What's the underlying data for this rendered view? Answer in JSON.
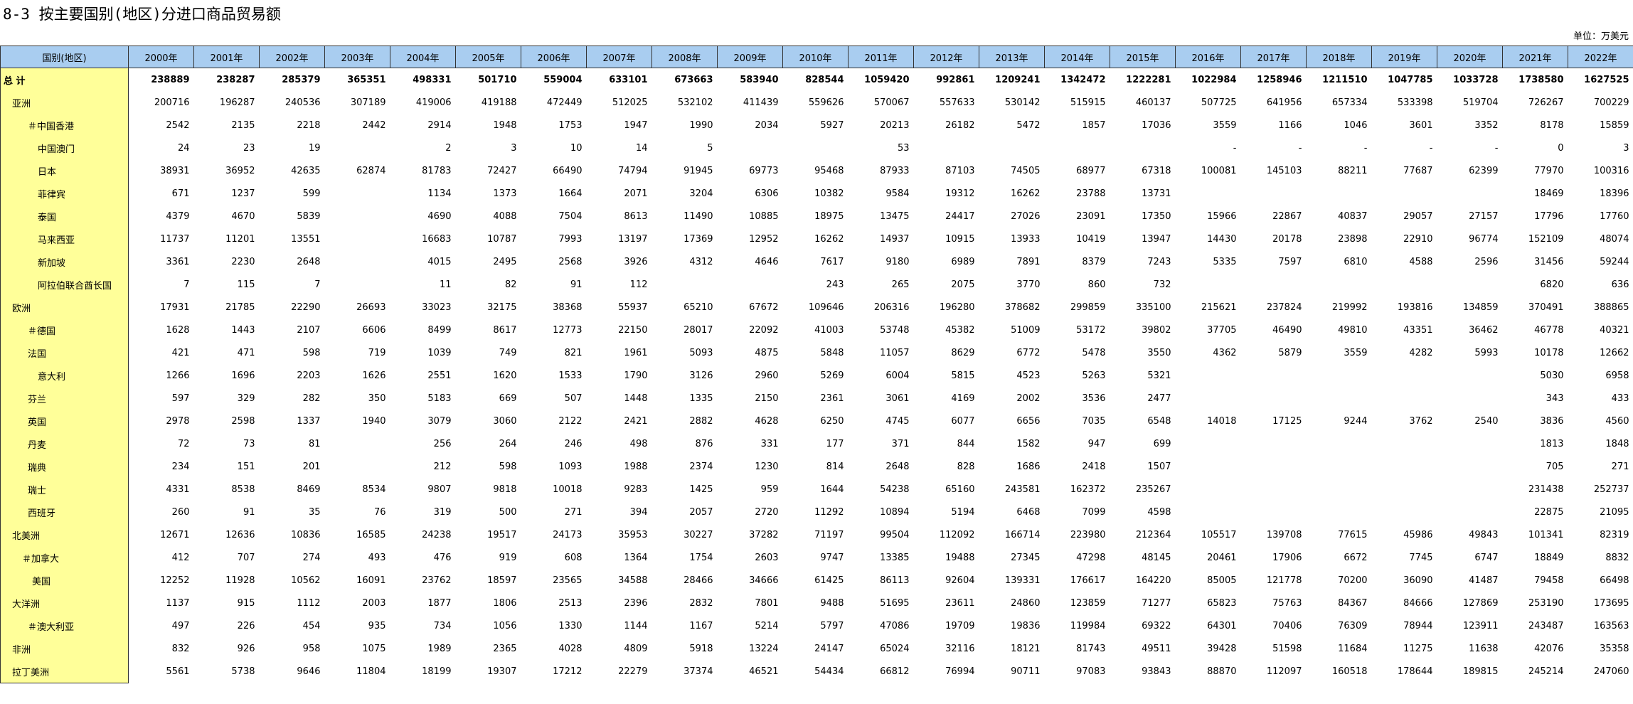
{
  "title": "8-3 按主要国别(地区)分进口商品贸易额",
  "unit": "单位：万美元",
  "table": {
    "header": [
      "国别(地区)",
      "2000年",
      "2001年",
      "2002年",
      "2003年",
      "2004年",
      "2005年",
      "2006年",
      "2007年",
      "2008年",
      "2009年",
      "2010年",
      "2011年",
      "2012年",
      "2013年",
      "2014年",
      "2015年",
      "2016年",
      "2017年",
      "2018年",
      "2019年",
      "2020年",
      "2021年",
      "2022年"
    ],
    "rows": [
      [
        "总  计",
        238889,
        238287,
        285379,
        365351,
        498331,
        501710,
        559004,
        633101,
        673663,
        583940,
        828544,
        1059420,
        992861,
        1209241,
        1342472,
        1222281,
        1022984,
        1258946,
        1211510,
        1047785,
        1033728,
        1738580,
        1627525
      ],
      [
        "亚洲",
        200716,
        196287,
        240536,
        307189,
        419006,
        419188,
        472449,
        512025,
        532102,
        411439,
        559626,
        570067,
        557633,
        530142,
        515915,
        460137,
        507725,
        641956,
        657334,
        533398,
        519704,
        726267,
        700229
      ],
      [
        "＃中国香港",
        2542,
        2135,
        2218,
        2442,
        2914,
        1948,
        1753,
        1947,
        1990,
        2034,
        5927,
        20213,
        26182,
        5472,
        1857,
        17036,
        3559,
        1166,
        1046,
        3601,
        3352,
        8178,
        15859
      ],
      [
        "中国澳门",
        24,
        23,
        19,
        null,
        2,
        3,
        10,
        14,
        5,
        null,
        null,
        53,
        null,
        null,
        null,
        null,
        "-",
        "-",
        "-",
        "-",
        "-",
        0,
        3
      ],
      [
        "日本",
        38931,
        36952,
        42635,
        62874,
        81783,
        72427,
        66490,
        74794,
        91945,
        69773,
        95468,
        87933,
        87103,
        74505,
        68977,
        67318,
        100081,
        145103,
        88211,
        77687,
        62399,
        77970,
        100316
      ],
      [
        "菲律宾",
        671,
        1237,
        599,
        null,
        1134,
        1373,
        1664,
        2071,
        3204,
        6306,
        10382,
        9584,
        19312,
        16262,
        23788,
        13731,
        null,
        null,
        null,
        null,
        null,
        18469,
        18396
      ],
      [
        "泰国",
        4379,
        4670,
        5839,
        null,
        4690,
        4088,
        7504,
        8613,
        11490,
        10885,
        18975,
        13475,
        24417,
        27026,
        23091,
        17350,
        15966,
        22867,
        40837,
        29057,
        27157,
        17796,
        17760
      ],
      [
        "马来西亚",
        11737,
        11201,
        13551,
        null,
        16683,
        10787,
        7993,
        13197,
        17369,
        12952,
        16262,
        14937,
        10915,
        13933,
        10419,
        13947,
        14430,
        20178,
        23898,
        22910,
        96774,
        152109,
        48074
      ],
      [
        "新加坡",
        3361,
        2230,
        2648,
        null,
        4015,
        2495,
        2568,
        3926,
        4312,
        4646,
        7617,
        9180,
        6989,
        7891,
        8379,
        7243,
        5335,
        7597,
        6810,
        4588,
        2596,
        31456,
        59244
      ],
      [
        "阿拉伯联合酋长国",
        7,
        115,
        7,
        null,
        11,
        82,
        91,
        112,
        null,
        null,
        243,
        265,
        2075,
        3770,
        860,
        732,
        null,
        null,
        null,
        null,
        null,
        6820,
        636
      ],
      [
        "欧洲",
        17931,
        21785,
        22290,
        26693,
        33023,
        32175,
        38368,
        55937,
        65210,
        67672,
        109646,
        206316,
        196280,
        378682,
        299859,
        335100,
        215621,
        237824,
        219992,
        193816,
        134859,
        370491,
        388865
      ],
      [
        "＃德国",
        1628,
        1443,
        2107,
        6606,
        8499,
        8617,
        12773,
        22150,
        28017,
        22092,
        41003,
        53748,
        45382,
        51009,
        53172,
        39802,
        37705,
        46490,
        49810,
        43351,
        36462,
        46778,
        40321
      ],
      [
        "法国",
        421,
        471,
        598,
        719,
        1039,
        749,
        821,
        1961,
        5093,
        4875,
        5848,
        11057,
        8629,
        6772,
        5478,
        3550,
        4362,
        5879,
        3559,
        4282,
        5993,
        10178,
        12662
      ],
      [
        "意大利",
        1266,
        1696,
        2203,
        1626,
        2551,
        1620,
        1533,
        1790,
        3126,
        2960,
        5269,
        6004,
        5815,
        4523,
        5263,
        5321,
        null,
        null,
        null,
        null,
        null,
        5030,
        6958
      ],
      [
        "芬兰",
        597,
        329,
        282,
        350,
        5183,
        669,
        507,
        1448,
        1335,
        2150,
        2361,
        3061,
        4169,
        2002,
        3536,
        2477,
        null,
        null,
        null,
        null,
        null,
        343,
        433
      ],
      [
        "英国",
        2978,
        2598,
        1337,
        1940,
        3079,
        3060,
        2122,
        2421,
        2882,
        4628,
        6250,
        4745,
        6077,
        6656,
        7035,
        6548,
        14018,
        17125,
        9244,
        3762,
        2540,
        3836,
        4560
      ],
      [
        "丹麦",
        72,
        73,
        81,
        null,
        256,
        264,
        246,
        498,
        876,
        331,
        177,
        371,
        844,
        1582,
        947,
        699,
        null,
        null,
        null,
        null,
        null,
        1813,
        1848
      ],
      [
        "瑞典",
        234,
        151,
        201,
        null,
        212,
        598,
        1093,
        1988,
        2374,
        1230,
        814,
        2648,
        828,
        1686,
        2418,
        1507,
        null,
        null,
        null,
        null,
        null,
        705,
        271
      ],
      [
        "瑞士",
        4331,
        8538,
        8469,
        8534,
        9807,
        9818,
        10018,
        9283,
        1425,
        959,
        1644,
        54238,
        65160,
        243581,
        162372,
        235267,
        null,
        null,
        null,
        null,
        null,
        231438,
        252737
      ],
      [
        "西班牙",
        260,
        91,
        35,
        76,
        319,
        500,
        271,
        394,
        2057,
        2720,
        11292,
        10894,
        5194,
        6468,
        7099,
        4598,
        null,
        null,
        null,
        null,
        null,
        22875,
        21095
      ],
      [
        "北美洲",
        12671,
        12636,
        10836,
        16585,
        24238,
        19517,
        24173,
        35953,
        30227,
        37282,
        71197,
        99504,
        112092,
        166714,
        223980,
        212364,
        105517,
        139708,
        77615,
        45986,
        49843,
        101341,
        82319
      ],
      [
        "＃加拿大",
        412,
        707,
        274,
        493,
        476,
        919,
        608,
        1364,
        1754,
        2603,
        9747,
        13385,
        19488,
        27345,
        47298,
        48145,
        20461,
        17906,
        6672,
        7745,
        6747,
        18849,
        8832
      ],
      [
        "美国",
        12252,
        11928,
        10562,
        16091,
        23762,
        18597,
        23565,
        34588,
        28466,
        34666,
        61425,
        86113,
        92604,
        139331,
        176617,
        164220,
        85005,
        121778,
        70200,
        36090,
        41487,
        79458,
        66498
      ],
      [
        "大洋洲",
        1137,
        915,
        1112,
        2003,
        1877,
        1806,
        2513,
        2396,
        2832,
        7801,
        9488,
        51695,
        23611,
        24860,
        123859,
        71277,
        65823,
        75763,
        84367,
        84666,
        127869,
        253190,
        173695
      ],
      [
        "＃澳大利亚",
        497,
        226,
        454,
        935,
        734,
        1056,
        1330,
        1144,
        1167,
        5214,
        5797,
        47086,
        19709,
        19836,
        119984,
        69322,
        64301,
        70406,
        76309,
        78944,
        123911,
        243487,
        163563
      ],
      [
        "非洲",
        832,
        926,
        958,
        1075,
        1989,
        2365,
        4028,
        4809,
        5918,
        13224,
        24147,
        65024,
        32116,
        18121,
        81743,
        49511,
        39428,
        51598,
        11684,
        11275,
        11638,
        42076,
        35358
      ],
      [
        "拉丁美洲",
        5561,
        5738,
        9646,
        11804,
        18199,
        19307,
        17212,
        22279,
        37374,
        46521,
        54434,
        66812,
        76994,
        90711,
        97083,
        93843,
        88870,
        112097,
        160518,
        178644,
        189815,
        245214,
        247060
      ]
    ]
  }
}
